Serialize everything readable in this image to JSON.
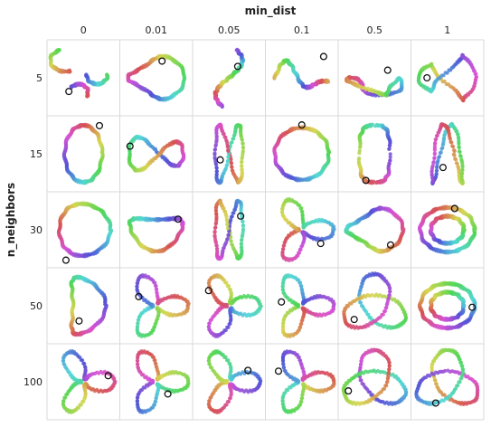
{
  "chart_data": {
    "type": "scatter",
    "title": "",
    "col_header": "min_dist",
    "row_header": "n_neighbors",
    "col_values": [
      "0",
      "0.01",
      "0.05",
      "0.1",
      "0.5",
      "1"
    ],
    "row_values": [
      "5",
      "15",
      "30",
      "50",
      "100"
    ],
    "grid": true,
    "panels": [
      [
        {
          "shape": "fragments",
          "marker": [
            0.3,
            0.68
          ]
        },
        {
          "shape": "blob",
          "marker": [
            0.58,
            0.28
          ]
        },
        {
          "shape": "s-curve",
          "marker": [
            0.62,
            0.35
          ]
        },
        {
          "shape": "wave",
          "marker": [
            0.8,
            0.22
          ]
        },
        {
          "shape": "lasso",
          "marker": [
            0.68,
            0.4
          ]
        },
        {
          "shape": "tangle",
          "marker": [
            0.22,
            0.5
          ]
        }
      ],
      [
        {
          "shape": "ring",
          "marker": [
            0.72,
            0.13
          ]
        },
        {
          "shape": "twist",
          "marker": [
            0.14,
            0.4
          ]
        },
        {
          "shape": "figure-eight",
          "marker": [
            0.38,
            0.58
          ]
        },
        {
          "shape": "circle",
          "marker": [
            0.5,
            0.12
          ]
        },
        {
          "shape": "rounded-rect",
          "marker": [
            0.38,
            0.85
          ]
        },
        {
          "shape": "double-loop",
          "marker": [
            0.44,
            0.68
          ]
        }
      ],
      [
        {
          "shape": "round",
          "marker": [
            0.26,
            0.9
          ]
        },
        {
          "shape": "kidney",
          "marker": [
            0.8,
            0.36
          ]
        },
        {
          "shape": "figure-eight",
          "marker": [
            0.66,
            0.32
          ]
        },
        {
          "shape": "trefoil",
          "marker": [
            0.76,
            0.68
          ]
        },
        {
          "shape": "blob",
          "marker": [
            0.72,
            0.7
          ]
        },
        {
          "shape": "nested-rings",
          "marker": [
            0.6,
            0.22
          ]
        }
      ],
      [
        {
          "shape": "hook",
          "marker": [
            0.44,
            0.7
          ]
        },
        {
          "shape": "trefoil",
          "marker": [
            0.26,
            0.38
          ]
        },
        {
          "shape": "trefoil",
          "marker": [
            0.22,
            0.3
          ]
        },
        {
          "shape": "trefoil",
          "marker": [
            0.22,
            0.45
          ]
        },
        {
          "shape": "knot",
          "marker": [
            0.22,
            0.68
          ]
        },
        {
          "shape": "nested-rings",
          "marker": [
            0.84,
            0.52
          ]
        }
      ],
      [
        {
          "shape": "trefoil",
          "marker": [
            0.84,
            0.42
          ]
        },
        {
          "shape": "trefoil",
          "marker": [
            0.66,
            0.66
          ]
        },
        {
          "shape": "trefoil",
          "marker": [
            0.76,
            0.35
          ]
        },
        {
          "shape": "trefoil",
          "marker": [
            0.18,
            0.36
          ]
        },
        {
          "shape": "knot",
          "marker": [
            0.14,
            0.62
          ]
        },
        {
          "shape": "knot",
          "marker": [
            0.34,
            0.78
          ]
        }
      ]
    ]
  }
}
